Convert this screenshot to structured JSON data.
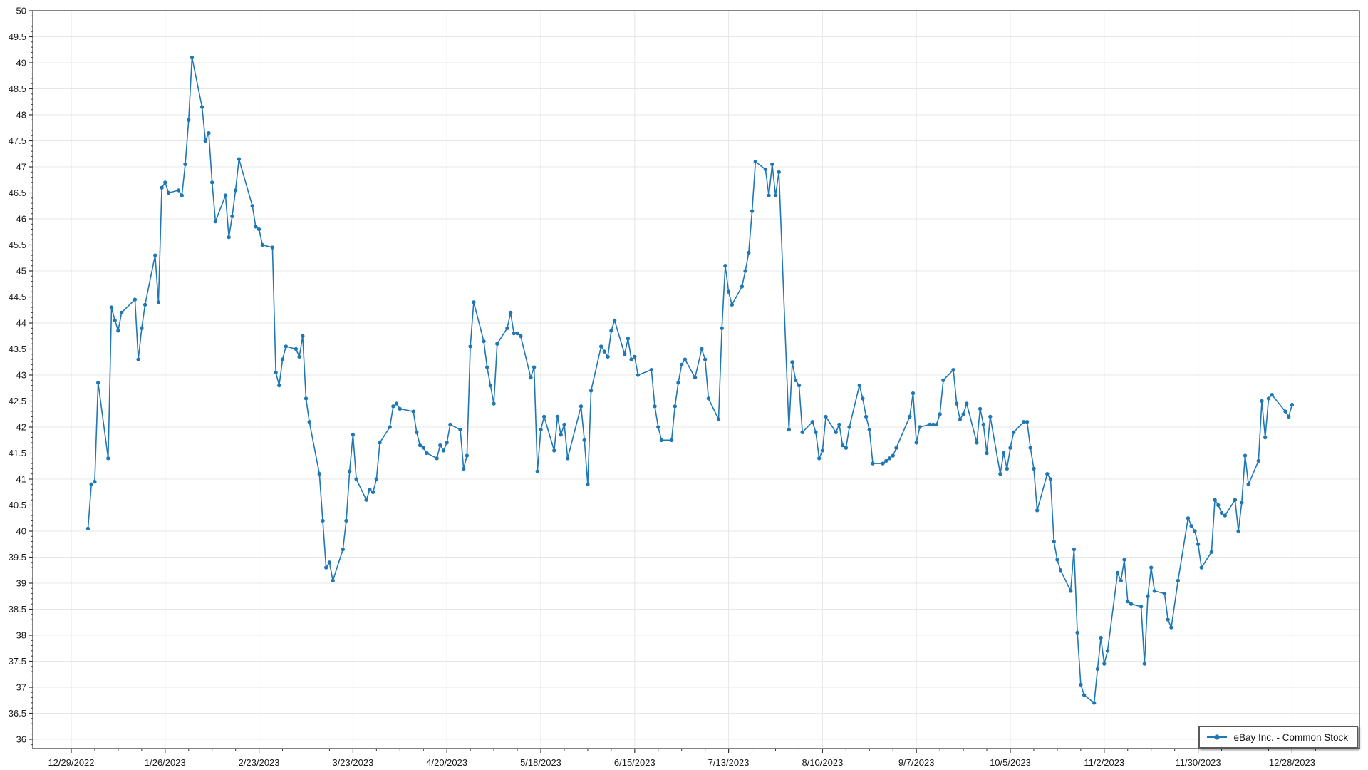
{
  "chart_data": {
    "type": "line",
    "title": "",
    "xlabel": "",
    "ylabel": "",
    "grid": true,
    "legend_position": "bottom-right",
    "colors": {
      "line": "#1f77b4",
      "marker": "#1f77b4",
      "gridline": "#e7e7e7",
      "axis": "#333333",
      "tick_label": "#1a1a1a",
      "background": "#ffffff",
      "legend_border": "#595959"
    },
    "y_axis": {
      "min": 35.82,
      "max": 50,
      "major_step": 0.5,
      "minor_step": 0.1
    },
    "x_axis": {
      "start_date": "2022-12-29",
      "tick_interval_days": 28,
      "minor_interval_days": 7,
      "num_ticks": 14
    },
    "y_tick_labels": [
      "36",
      "36.5",
      "37",
      "37.5",
      "38",
      "38.5",
      "39",
      "39.5",
      "40",
      "40.5",
      "41",
      "41.5",
      "42",
      "42.5",
      "43",
      "43.5",
      "44",
      "44.5",
      "45",
      "45.5",
      "46",
      "46.5",
      "47",
      "47.5",
      "48",
      "48.5",
      "49",
      "49.5",
      "50"
    ],
    "x_tick_labels": [
      "12/29/2022",
      "1/26/2023",
      "2/23/2023",
      "3/23/2023",
      "4/20/2023",
      "5/18/2023",
      "6/15/2023",
      "7/13/2023",
      "8/10/2023",
      "9/7/2023",
      "10/5/2023",
      "11/2/2023",
      "11/30/2023",
      "12/28/2023"
    ],
    "series": [
      {
        "name": "eBay Inc. - Common Stock",
        "color": "#1f77b4",
        "dates": [
          "2023-01-03",
          "2023-01-04",
          "2023-01-05",
          "2023-01-06",
          "2023-01-09",
          "2023-01-10",
          "2023-01-11",
          "2023-01-12",
          "2023-01-13",
          "2023-01-17",
          "2023-01-18",
          "2023-01-19",
          "2023-01-20",
          "2023-01-23",
          "2023-01-24",
          "2023-01-25",
          "2023-01-26",
          "2023-01-27",
          "2023-01-30",
          "2023-01-31",
          "2023-02-01",
          "2023-02-02",
          "2023-02-03",
          "2023-02-06",
          "2023-02-07",
          "2023-02-08",
          "2023-02-09",
          "2023-02-10",
          "2023-02-13",
          "2023-02-14",
          "2023-02-15",
          "2023-02-16",
          "2023-02-17",
          "2023-02-21",
          "2023-02-22",
          "2023-02-23",
          "2023-02-24",
          "2023-02-27",
          "2023-02-28",
          "2023-03-01",
          "2023-03-02",
          "2023-03-03",
          "2023-03-06",
          "2023-03-07",
          "2023-03-08",
          "2023-03-09",
          "2023-03-10",
          "2023-03-13",
          "2023-03-14",
          "2023-03-15",
          "2023-03-16",
          "2023-03-17",
          "2023-03-20",
          "2023-03-21",
          "2023-03-22",
          "2023-03-23",
          "2023-03-24",
          "2023-03-27",
          "2023-03-28",
          "2023-03-29",
          "2023-03-30",
          "2023-03-31",
          "2023-04-03",
          "2023-04-04",
          "2023-04-05",
          "2023-04-06",
          "2023-04-10",
          "2023-04-11",
          "2023-04-12",
          "2023-04-13",
          "2023-04-14",
          "2023-04-17",
          "2023-04-18",
          "2023-04-19",
          "2023-04-20",
          "2023-04-21",
          "2023-04-24",
          "2023-04-25",
          "2023-04-26",
          "2023-04-27",
          "2023-04-28",
          "2023-05-01",
          "2023-05-02",
          "2023-05-03",
          "2023-05-04",
          "2023-05-05",
          "2023-05-08",
          "2023-05-09",
          "2023-05-10",
          "2023-05-11",
          "2023-05-12",
          "2023-05-15",
          "2023-05-16",
          "2023-05-17",
          "2023-05-18",
          "2023-05-19",
          "2023-05-22",
          "2023-05-23",
          "2023-05-24",
          "2023-05-25",
          "2023-05-26",
          "2023-05-30",
          "2023-05-31",
          "2023-06-01",
          "2023-06-02",
          "2023-06-05",
          "2023-06-06",
          "2023-06-07",
          "2023-06-08",
          "2023-06-09",
          "2023-06-12",
          "2023-06-13",
          "2023-06-14",
          "2023-06-15",
          "2023-06-16",
          "2023-06-20",
          "2023-06-21",
          "2023-06-22",
          "2023-06-23",
          "2023-06-26",
          "2023-06-27",
          "2023-06-28",
          "2023-06-29",
          "2023-06-30",
          "2023-07-03",
          "2023-07-05",
          "2023-07-06",
          "2023-07-07",
          "2023-07-10",
          "2023-07-11",
          "2023-07-12",
          "2023-07-13",
          "2023-07-14",
          "2023-07-17",
          "2023-07-18",
          "2023-07-19",
          "2023-07-20",
          "2023-07-21",
          "2023-07-24",
          "2023-07-25",
          "2023-07-26",
          "2023-07-27",
          "2023-07-28",
          "2023-07-31",
          "2023-08-01",
          "2023-08-02",
          "2023-08-03",
          "2023-08-04",
          "2023-08-07",
          "2023-08-08",
          "2023-08-09",
          "2023-08-10",
          "2023-08-11",
          "2023-08-14",
          "2023-08-15",
          "2023-08-16",
          "2023-08-17",
          "2023-08-18",
          "2023-08-21",
          "2023-08-22",
          "2023-08-23",
          "2023-08-24",
          "2023-08-25",
          "2023-08-28",
          "2023-08-29",
          "2023-08-30",
          "2023-08-31",
          "2023-09-01",
          "2023-09-05",
          "2023-09-06",
          "2023-09-07",
          "2023-09-08",
          "2023-09-11",
          "2023-09-12",
          "2023-09-13",
          "2023-09-14",
          "2023-09-15",
          "2023-09-18",
          "2023-09-19",
          "2023-09-20",
          "2023-09-21",
          "2023-09-22",
          "2023-09-25",
          "2023-09-26",
          "2023-09-27",
          "2023-09-28",
          "2023-09-29",
          "2023-10-02",
          "2023-10-03",
          "2023-10-04",
          "2023-10-05",
          "2023-10-06",
          "2023-10-09",
          "2023-10-10",
          "2023-10-11",
          "2023-10-12",
          "2023-10-13",
          "2023-10-16",
          "2023-10-17",
          "2023-10-18",
          "2023-10-19",
          "2023-10-20",
          "2023-10-23",
          "2023-10-24",
          "2023-10-25",
          "2023-10-26",
          "2023-10-27",
          "2023-10-30",
          "2023-10-31",
          "2023-11-01",
          "2023-11-02",
          "2023-11-03",
          "2023-11-06",
          "2023-11-07",
          "2023-11-08",
          "2023-11-09",
          "2023-11-10",
          "2023-11-13",
          "2023-11-14",
          "2023-11-15",
          "2023-11-16",
          "2023-11-17",
          "2023-11-20",
          "2023-11-21",
          "2023-11-22",
          "2023-11-24",
          "2023-11-27",
          "2023-11-28",
          "2023-11-29",
          "2023-11-30",
          "2023-12-01",
          "2023-12-04",
          "2023-12-05",
          "2023-12-06",
          "2023-12-07",
          "2023-12-08",
          "2023-12-11",
          "2023-12-12",
          "2023-12-13",
          "2023-12-14",
          "2023-12-15",
          "2023-12-18",
          "2023-12-19",
          "2023-12-20",
          "2023-12-21",
          "2023-12-22",
          "2023-12-26",
          "2023-12-27",
          "2023-12-28"
        ],
        "values": [
          40.05,
          40.9,
          40.95,
          42.85,
          41.4,
          44.3,
          44.05,
          43.85,
          44.2,
          44.45,
          43.3,
          43.9,
          44.35,
          45.3,
          44.4,
          46.6,
          46.7,
          46.5,
          46.55,
          46.45,
          47.05,
          47.9,
          49.1,
          48.15,
          47.5,
          47.65,
          46.7,
          45.95,
          46.45,
          45.65,
          46.05,
          46.55,
          47.15,
          46.25,
          45.85,
          45.8,
          45.5,
          45.45,
          43.05,
          42.8,
          43.3,
          43.55,
          43.5,
          43.35,
          43.75,
          42.55,
          42.1,
          41.1,
          40.2,
          39.3,
          39.4,
          39.05,
          39.65,
          40.2,
          41.15,
          41.85,
          41.0,
          40.6,
          40.8,
          40.75,
          41.0,
          41.7,
          42.0,
          42.4,
          42.45,
          42.35,
          42.3,
          41.9,
          41.65,
          41.6,
          41.5,
          41.4,
          41.65,
          41.55,
          41.7,
          42.05,
          41.95,
          41.2,
          41.45,
          43.55,
          44.4,
          43.65,
          43.15,
          42.8,
          42.45,
          43.6,
          43.9,
          44.2,
          43.8,
          43.8,
          43.75,
          42.95,
          43.15,
          41.15,
          41.95,
          42.2,
          41.55,
          42.2,
          41.85,
          42.05,
          41.4,
          42.4,
          41.75,
          40.9,
          42.7,
          43.55,
          43.45,
          43.35,
          43.85,
          44.05,
          43.4,
          43.7,
          43.3,
          43.35,
          43.0,
          43.1,
          42.4,
          42.0,
          41.75,
          41.75,
          42.4,
          42.85,
          43.2,
          43.3,
          42.95,
          43.5,
          43.3,
          42.55,
          42.15,
          43.9,
          45.1,
          44.6,
          44.35,
          44.7,
          45.0,
          45.35,
          46.15,
          47.1,
          46.95,
          46.45,
          47.05,
          46.45,
          46.9,
          41.95,
          43.25,
          42.9,
          42.8,
          41.9,
          42.1,
          41.9,
          41.4,
          41.55,
          42.2,
          41.9,
          42.05,
          41.65,
          41.6,
          42.0,
          42.8,
          42.55,
          42.2,
          41.95,
          41.3,
          41.3,
          41.35,
          41.4,
          41.45,
          41.6,
          42.2,
          42.65,
          41.7,
          42.0,
          42.05,
          42.05,
          42.05,
          42.25,
          42.9,
          43.1,
          42.45,
          42.15,
          42.25,
          42.45,
          41.7,
          42.35,
          42.05,
          41.5,
          42.2,
          41.1,
          41.5,
          41.2,
          41.6,
          41.9,
          42.1,
          42.1,
          41.6,
          41.2,
          40.4,
          41.1,
          41.0,
          39.8,
          39.45,
          39.25,
          38.85,
          39.65,
          38.05,
          37.05,
          36.85,
          36.7,
          37.35,
          37.95,
          37.45,
          37.7,
          39.2,
          39.05,
          39.45,
          38.65,
          38.6,
          38.55,
          37.45,
          38.75,
          39.3,
          38.85,
          38.8,
          38.3,
          38.15,
          39.05,
          40.25,
          40.1,
          40.0,
          39.75,
          39.3,
          39.6,
          40.6,
          40.5,
          40.35,
          40.3,
          40.6,
          40.0,
          40.55,
          41.45,
          40.9,
          41.35,
          42.5,
          41.8,
          42.55,
          42.62,
          42.3,
          42.2,
          42.43
        ]
      }
    ]
  },
  "legend": {
    "label": "eBay Inc. - Common Stock",
    "marker_icon": "line-dot-icon"
  }
}
